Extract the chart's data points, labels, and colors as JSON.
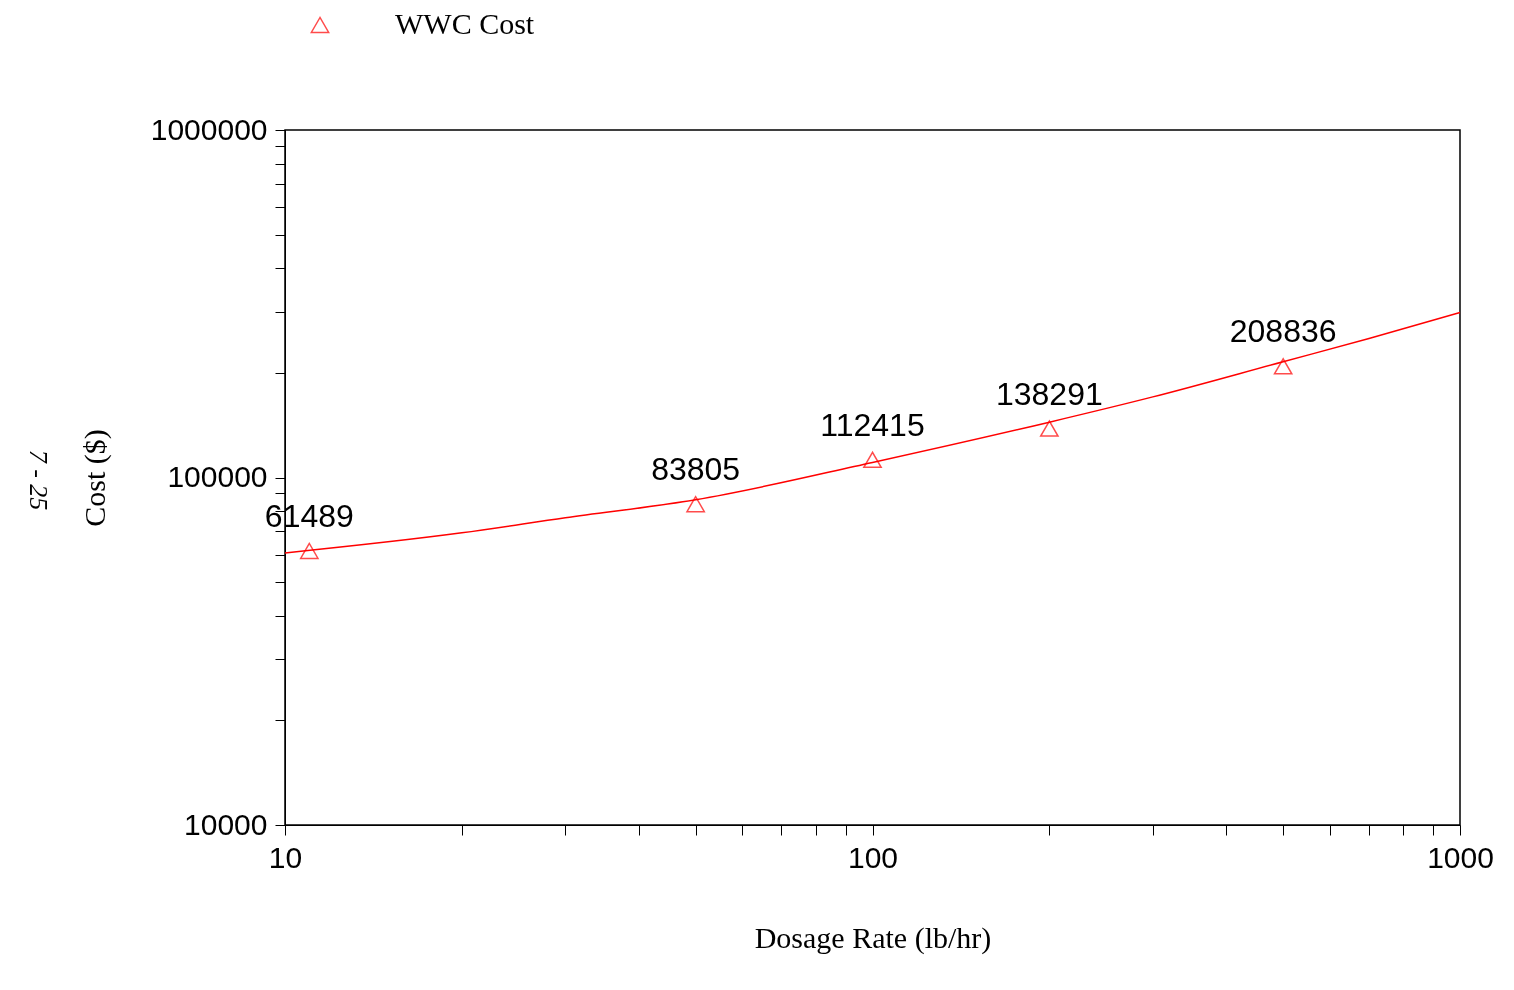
{
  "chart_data": {
    "type": "scatter",
    "xlabel": "Dosage Rate (lb/hr)",
    "ylabel": "Cost ($)",
    "log": "xy",
    "grid": false,
    "legend": "top left",
    "xlim": [
      10,
      1000
    ],
    "xticks": [
      10,
      {
        "value": 20,
        "label": null
      },
      {
        "value": 30,
        "label": null
      },
      {
        "value": 40,
        "label": null
      },
      {
        "value": 50,
        "label": null
      },
      {
        "value": 60,
        "label": null
      },
      {
        "value": 70,
        "label": null
      },
      {
        "value": 80,
        "label": null
      },
      {
        "value": 90,
        "label": null
      },
      100,
      {
        "value": 200,
        "label": null
      },
      {
        "value": 300,
        "label": null
      },
      {
        "value": 400,
        "label": null
      },
      {
        "value": 500,
        "label": null
      },
      {
        "value": 600,
        "label": null
      },
      {
        "value": 700,
        "label": null
      },
      {
        "value": 800,
        "label": null
      },
      {
        "value": 900,
        "label": null
      },
      1000
    ],
    "ylim": [
      10000,
      1000000
    ],
    "yticks": [
      10000,
      {
        "value": 20000,
        "label": null
      },
      {
        "value": 30000,
        "label": null
      },
      {
        "value": 40000,
        "label": null
      },
      {
        "value": 50000,
        "label": null
      },
      {
        "value": 60000,
        "label": null
      },
      {
        "value": 70000,
        "label": null
      },
      {
        "value": 80000,
        "label": null
      },
      {
        "value": 90000,
        "label": null
      },
      100000,
      {
        "value": 200000,
        "label": null
      },
      {
        "value": 300000,
        "label": null
      },
      {
        "value": 400000,
        "label": null
      },
      {
        "value": 500000,
        "label": null
      },
      {
        "value": 600000,
        "label": null
      },
      {
        "value": 700000,
        "label": null
      },
      {
        "value": 800000,
        "label": null
      },
      {
        "value": 900000,
        "label": null
      },
      1000000
    ],
    "annotations": [
      "7 - 25"
    ],
    "series": [
      {
        "type": "line",
        "color": "#ff0000",
        "marker": "none",
        "line_style": "solid",
        "x": [
          10,
          20,
          30,
          50,
          100,
          200,
          300,
          500,
          700,
          1000
        ],
        "values": [
          60650,
          69300,
          76600,
          86300,
          110500,
          144300,
          170600,
          215400,
          251200,
          298600
        ]
      },
      {
        "name": "WWC Cost",
        "type": "scatter",
        "color": "#ff0000",
        "marker": "triangle",
        "x": [
          11,
          50,
          100,
          200,
          500
        ],
        "values": [
          61489,
          83805,
          112415,
          138291,
          208836
        ],
        "value_labels": [
          "61489",
          "83805",
          "112415",
          "138291",
          "208836"
        ]
      }
    ]
  }
}
